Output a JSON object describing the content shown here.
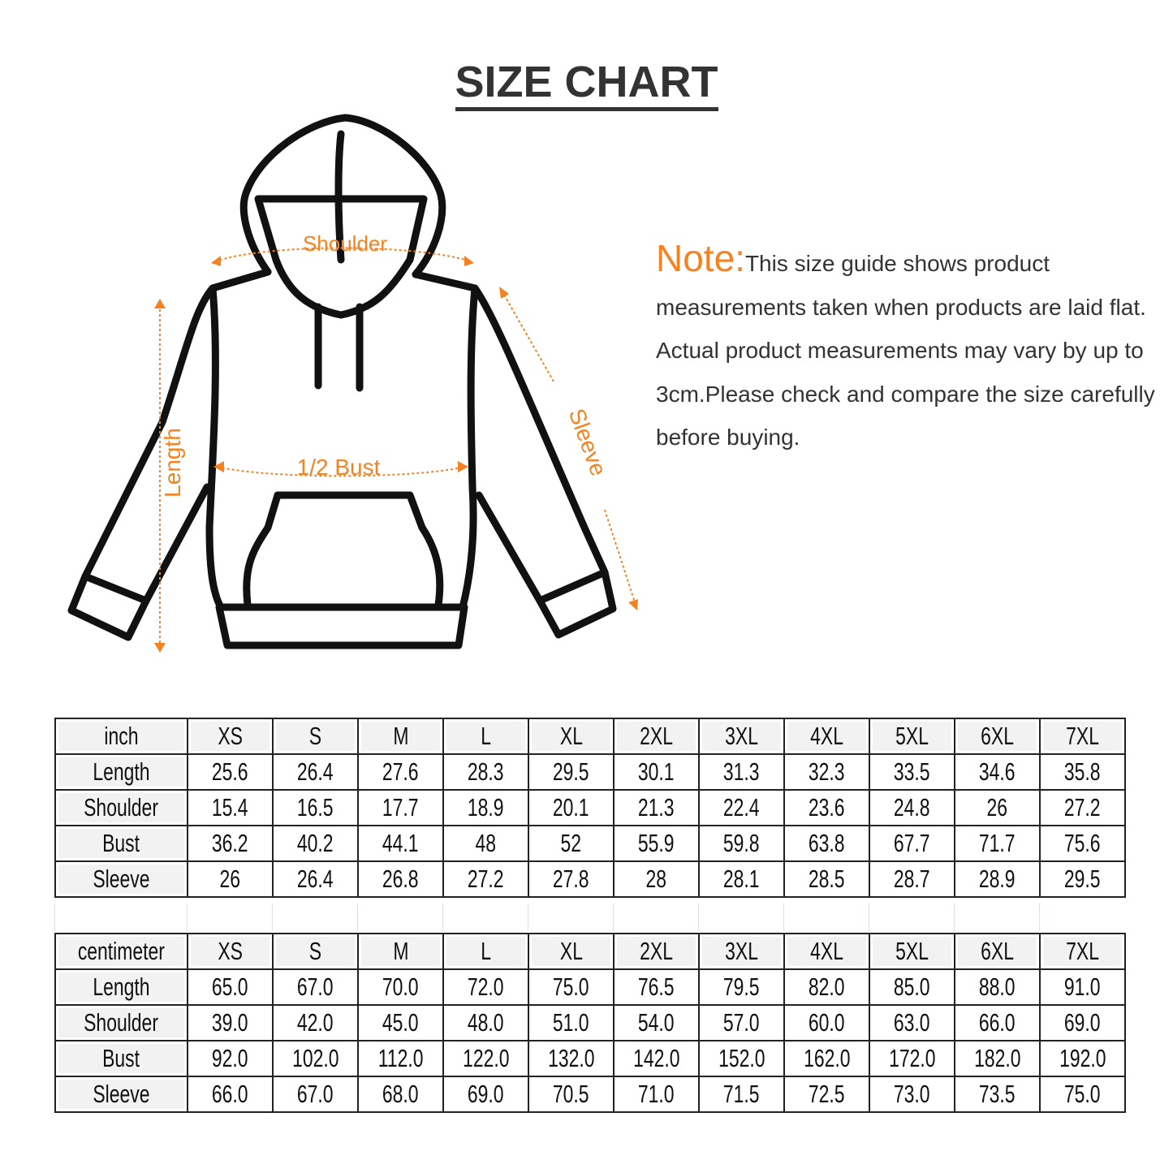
{
  "title": "SIZE CHART",
  "diagram": {
    "labels": {
      "shoulder": "Shoulder",
      "length": "Length",
      "bust": "1/2 Bust",
      "sleeve": "Sleeve"
    },
    "accent_color": "#f58220"
  },
  "note": {
    "lead": "Note:",
    "text": "This size guide shows product measurements taken when products are laid flat. Actual product measurements may vary by up to 3cm.Please check and compare the size carefully before buying."
  },
  "inch_table": {
    "header": [
      "inch",
      "XS",
      "S",
      "M",
      "L",
      "XL",
      "2XL",
      "3XL",
      "4XL",
      "5XL",
      "6XL",
      "7XL"
    ],
    "rows": [
      [
        "Length",
        "25.6",
        "26.4",
        "27.6",
        "28.3",
        "29.5",
        "30.1",
        "31.3",
        "32.3",
        "33.5",
        "34.6",
        "35.8"
      ],
      [
        "Shoulder",
        "15.4",
        "16.5",
        "17.7",
        "18.9",
        "20.1",
        "21.3",
        "22.4",
        "23.6",
        "24.8",
        "26",
        "27.2"
      ],
      [
        "Bust",
        "36.2",
        "40.2",
        "44.1",
        "48",
        "52",
        "55.9",
        "59.8",
        "63.8",
        "67.7",
        "71.7",
        "75.6"
      ],
      [
        "Sleeve",
        "26",
        "26.4",
        "26.8",
        "27.2",
        "27.8",
        "28",
        "28.1",
        "28.5",
        "28.7",
        "28.9",
        "29.5"
      ]
    ]
  },
  "cm_table": {
    "header": [
      "centimeter",
      "XS",
      "S",
      "M",
      "L",
      "XL",
      "2XL",
      "3XL",
      "4XL",
      "5XL",
      "6XL",
      "7XL"
    ],
    "rows": [
      [
        "Length",
        "65.0",
        "67.0",
        "70.0",
        "72.0",
        "75.0",
        "76.5",
        "79.5",
        "82.0",
        "85.0",
        "88.0",
        "91.0"
      ],
      [
        "Shoulder",
        "39.0",
        "42.0",
        "45.0",
        "48.0",
        "51.0",
        "54.0",
        "57.0",
        "60.0",
        "63.0",
        "66.0",
        "69.0"
      ],
      [
        "Bust",
        "92.0",
        "102.0",
        "112.0",
        "122.0",
        "132.0",
        "142.0",
        "152.0",
        "162.0",
        "172.0",
        "182.0",
        "192.0"
      ],
      [
        "Sleeve",
        "66.0",
        "67.0",
        "68.0",
        "69.0",
        "70.5",
        "71.0",
        "71.5",
        "72.5",
        "73.0",
        "73.5",
        "75.0"
      ]
    ]
  }
}
